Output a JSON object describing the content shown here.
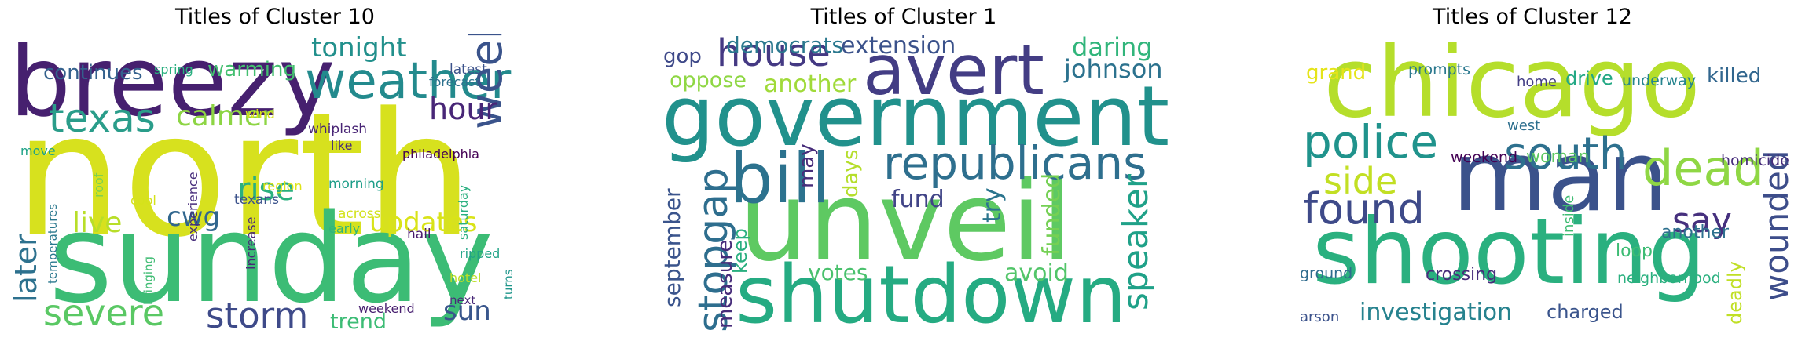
{
  "clusters": [
    {
      "title": "Titles of Cluster 10",
      "words": [
        {
          "text": "north",
          "color": "#d7e11e"
        },
        {
          "text": "sunday",
          "color": "#3cbc75"
        },
        {
          "text": "breezy",
          "color": "#46206f"
        },
        {
          "text": "weather",
          "color": "#238a8d"
        },
        {
          "text": "texas",
          "color": "#2a9d8a"
        },
        {
          "text": "severe",
          "color": "#5ac864"
        },
        {
          "text": "storm",
          "color": "#3e4a89"
        },
        {
          "text": "week",
          "color": "#3a538b"
        },
        {
          "text": "hour",
          "color": "#482677"
        },
        {
          "text": "tonight",
          "color": "#22908c"
        },
        {
          "text": "calmer",
          "color": "#8dd544"
        },
        {
          "text": "rise",
          "color": "#2ab07f"
        },
        {
          "text": "live",
          "color": "#b8de29"
        },
        {
          "text": "later",
          "color": "#2d718e"
        },
        {
          "text": "updates",
          "color": "#d9e318"
        },
        {
          "text": "cwg",
          "color": "#31668e"
        },
        {
          "text": "continues",
          "color": "#34618d"
        },
        {
          "text": "warming",
          "color": "#44bf70"
        },
        {
          "text": "trend",
          "color": "#3cbc75"
        },
        {
          "text": "sun",
          "color": "#39568c"
        },
        {
          "text": "weekend",
          "color": "#481f70"
        },
        {
          "text": "spring",
          "color": "#29af7f"
        },
        {
          "text": "latest",
          "color": "#3b528b"
        },
        {
          "text": "forecast",
          "color": "#2d718e"
        },
        {
          "text": "wind",
          "color": "#d5e21a"
        },
        {
          "text": "whiplash",
          "color": "#482475"
        },
        {
          "text": "like",
          "color": "#472c7a"
        },
        {
          "text": "philadelphia",
          "color": "#440154"
        },
        {
          "text": "move",
          "color": "#20a386"
        },
        {
          "text": "region",
          "color": "#dfe318"
        },
        {
          "text": "morning",
          "color": "#1f9e89"
        },
        {
          "text": "texans",
          "color": "#3b528b"
        },
        {
          "text": "across",
          "color": "#d2e21b"
        },
        {
          "text": "hail",
          "color": "#481a6c"
        },
        {
          "text": "saturday",
          "color": "#29af7f"
        },
        {
          "text": "roof",
          "color": "#7ad151"
        },
        {
          "text": "cool",
          "color": "#d5e21a"
        },
        {
          "text": "experience",
          "color": "#472d7b"
        },
        {
          "text": "increase",
          "color": "#482878"
        },
        {
          "text": "temperatures",
          "color": "#2a788e"
        },
        {
          "text": "bringing",
          "color": "#3fbc73"
        },
        {
          "text": "early",
          "color": "#31b57b"
        },
        {
          "text": "ripped",
          "color": "#20a386"
        },
        {
          "text": "hotel",
          "color": "#bddf26"
        },
        {
          "text": "turns",
          "color": "#1f968b"
        },
        {
          "text": "next",
          "color": "#482878"
        }
      ]
    },
    {
      "title": "Titles of Cluster 1",
      "words": [
        {
          "text": "government",
          "color": "#21918c"
        },
        {
          "text": "unveil",
          "color": "#5ec962"
        },
        {
          "text": "shutdown",
          "color": "#25ab82"
        },
        {
          "text": "avert",
          "color": "#433d84"
        },
        {
          "text": "bill",
          "color": "#2c728e"
        },
        {
          "text": "house",
          "color": "#443983"
        },
        {
          "text": "republicans",
          "color": "#2e6f8e"
        },
        {
          "text": "stopgap",
          "color": "#2e6e8e"
        },
        {
          "text": "speaker",
          "color": "#1fa188"
        },
        {
          "text": "extension",
          "color": "#3b528b"
        },
        {
          "text": "democrats",
          "color": "#2a788e"
        },
        {
          "text": "daring",
          "color": "#31b57b"
        },
        {
          "text": "johnson",
          "color": "#2c728e"
        },
        {
          "text": "gop",
          "color": "#3e4989"
        },
        {
          "text": "oppose",
          "color": "#8fd744"
        },
        {
          "text": "another",
          "color": "#a0da39"
        },
        {
          "text": "fund",
          "color": "#414487"
        },
        {
          "text": "try",
          "color": "#2b758e"
        },
        {
          "text": "funded",
          "color": "#75d054"
        },
        {
          "text": "avoid",
          "color": "#52c569"
        },
        {
          "text": "votes",
          "color": "#4ac16d"
        },
        {
          "text": "days",
          "color": "#b5de2b"
        },
        {
          "text": "may",
          "color": "#472c7a"
        },
        {
          "text": "keep",
          "color": "#29af7f"
        },
        {
          "text": "measure",
          "color": "#472c7a"
        },
        {
          "text": "september",
          "color": "#3a548c"
        }
      ]
    },
    {
      "title": "Titles of Cluster 12",
      "words": [
        {
          "text": "chicago",
          "color": "#b5de2b"
        },
        {
          "text": "man",
          "color": "#3b528b"
        },
        {
          "text": "shooting",
          "color": "#2ab07f"
        },
        {
          "text": "police",
          "color": "#20938c"
        },
        {
          "text": "south",
          "color": "#2d708e"
        },
        {
          "text": "dead",
          "color": "#8fd744"
        },
        {
          "text": "found",
          "color": "#3e4a89"
        },
        {
          "text": "side",
          "color": "#c2df23"
        },
        {
          "text": "wounded",
          "color": "#3d4d8a"
        },
        {
          "text": "say",
          "color": "#46307e"
        },
        {
          "text": "investigation",
          "color": "#26828e"
        },
        {
          "text": "killed",
          "color": "#31668e"
        },
        {
          "text": "grand",
          "color": "#e5e419"
        },
        {
          "text": "prompts",
          "color": "#2a788e"
        },
        {
          "text": "home",
          "color": "#433e85"
        },
        {
          "text": "drive",
          "color": "#22a884"
        },
        {
          "text": "underway",
          "color": "#25848e"
        },
        {
          "text": "west",
          "color": "#2e6f8e"
        },
        {
          "text": "weekend",
          "color": "#440154"
        },
        {
          "text": "woman",
          "color": "#5ec962"
        },
        {
          "text": "homicide",
          "color": "#472d7b"
        },
        {
          "text": "another",
          "color": "#2d708e"
        },
        {
          "text": "loop",
          "color": "#3dbc74"
        },
        {
          "text": "crossing",
          "color": "#472d7b"
        },
        {
          "text": "neighborhood",
          "color": "#2ab07f"
        },
        {
          "text": "ground",
          "color": "#2f6c8e"
        },
        {
          "text": "inside",
          "color": "#3fbc73"
        },
        {
          "text": "charged",
          "color": "#3a548c"
        },
        {
          "text": "arson",
          "color": "#3b528b"
        },
        {
          "text": "deadly",
          "color": "#c0df25"
        }
      ]
    }
  ]
}
